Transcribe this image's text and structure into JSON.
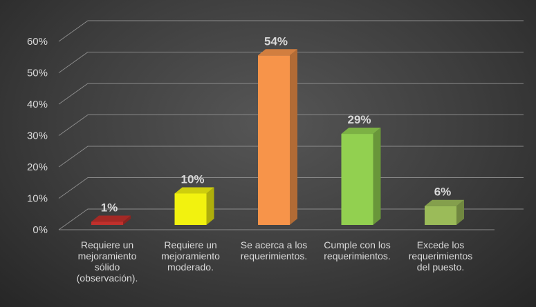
{
  "chart_data": {
    "type": "bar",
    "categories": [
      [
        "Requiere un",
        "mejoramiento",
        "sólido",
        "(observación)."
      ],
      [
        "Requiere un",
        "mejoramiento",
        "moderado."
      ],
      [
        "Se acerca a los",
        "requerimientos."
      ],
      [
        "Cumple con los",
        "requerimientos."
      ],
      [
        "Excede los",
        "requerimientos",
        "del puesto."
      ]
    ],
    "values": [
      1,
      10,
      54,
      29,
      6
    ],
    "data_labels": [
      "1%",
      "10%",
      "54%",
      "29%",
      "6%"
    ],
    "colors": [
      "#c0302c",
      "#f2f20f",
      "#f7944a",
      "#92d050",
      "#9bbb59"
    ],
    "ytick_labels": [
      "0%",
      "10%",
      "20%",
      "30%",
      "40%",
      "50%",
      "60%"
    ],
    "ylim": [
      0,
      60
    ],
    "grid": true,
    "legend": "none",
    "style": "3d-column"
  }
}
